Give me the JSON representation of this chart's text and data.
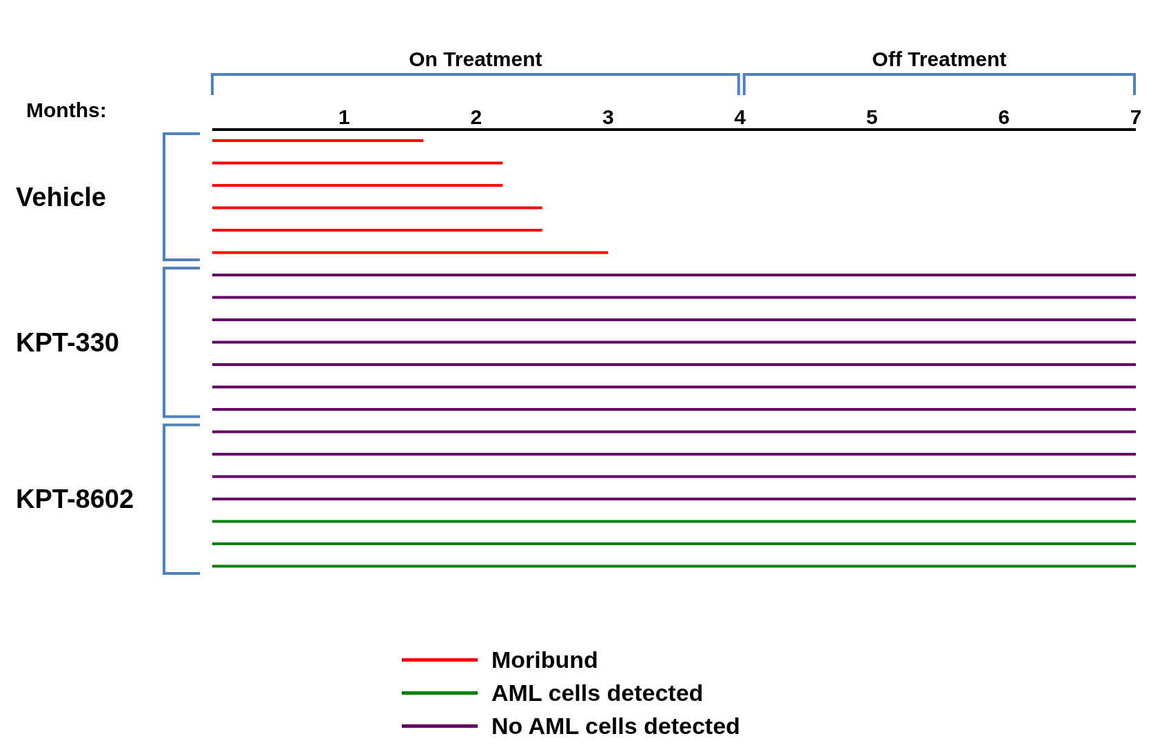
{
  "chart_data": {
    "type": "bar",
    "orientation": "horizontal",
    "categories": [
      null,
      null,
      null,
      null,
      null,
      null,
      null,
      null,
      null,
      null,
      null,
      null,
      null,
      null,
      null,
      null,
      null,
      null,
      null,
      null
    ],
    "series": [
      {
        "name": "Moribund",
        "color": "#ff0000",
        "values": [
          1.6,
          2.2,
          2.2,
          2.5,
          2.5,
          3,
          null,
          null,
          null,
          null,
          null,
          null,
          null,
          null,
          null,
          null,
          null,
          null,
          null,
          null
        ]
      },
      {
        "name": "AML cells detected",
        "color": "#008000",
        "values": [
          null,
          null,
          null,
          null,
          null,
          null,
          null,
          null,
          null,
          null,
          null,
          null,
          null,
          null,
          null,
          null,
          null,
          7,
          7,
          7
        ]
      },
      {
        "name": "No AML cells detected",
        "color": "#660066",
        "values": [
          null,
          null,
          null,
          null,
          null,
          null,
          7,
          7,
          7,
          7,
          7,
          7,
          7,
          7,
          7,
          7,
          7,
          null,
          null,
          null
        ]
      }
    ],
    "xlim": [
      0,
      7
    ],
    "xticks": [
      1,
      2,
      3,
      4,
      5,
      6,
      7
    ],
    "tick_labels": "x",
    "stacked": true,
    "legend": "bottom",
    "annotations": [
      "Months:",
      "Vehicle",
      "KPT-330",
      "KPT-8602",
      "On Treatment",
      "Off Treatment"
    ]
  }
}
